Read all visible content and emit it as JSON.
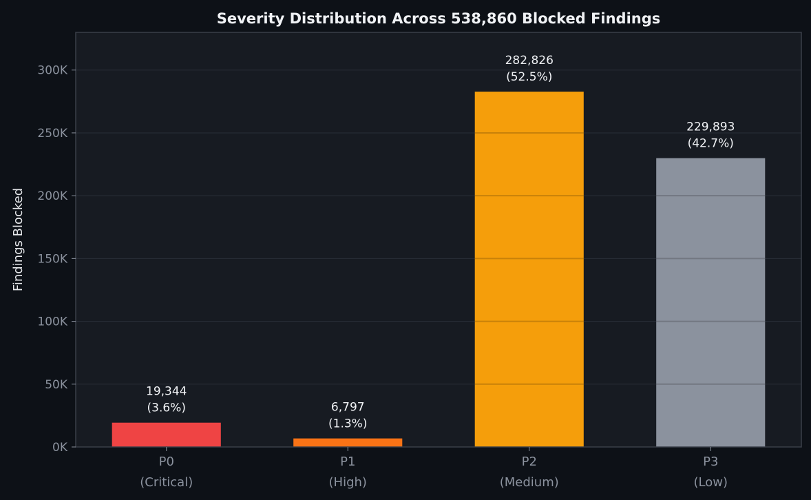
{
  "chart_data": {
    "type": "bar",
    "title": "Severity Distribution Across 538,860 Blocked Findings",
    "xlabel": "",
    "ylabel": "Findings Blocked",
    "categories": [
      {
        "code": "P0",
        "label": "(Critical)"
      },
      {
        "code": "P1",
        "label": "(High)"
      },
      {
        "code": "P2",
        "label": "(Medium)"
      },
      {
        "code": "P3",
        "label": "(Low)"
      }
    ],
    "values": [
      19344,
      6797,
      282826,
      229893
    ],
    "value_labels": [
      "19,344",
      "6,797",
      "282,826",
      "229,893"
    ],
    "percent_labels": [
      "(3.6%)",
      "(1.3%)",
      "(52.5%)",
      "(42.7%)"
    ],
    "bar_colors": [
      "#ef4444",
      "#f97316",
      "#f59e0b",
      "#8b929e"
    ],
    "ylim": [
      0,
      330000
    ],
    "yticks": [
      0,
      50000,
      100000,
      150000,
      200000,
      250000,
      300000
    ],
    "ytick_labels": [
      "0K",
      "50K",
      "100K",
      "150K",
      "200K",
      "250K",
      "300K"
    ],
    "grid": true,
    "legend": "none"
  },
  "colors": {
    "page_bg": "#0d1117",
    "plot_bg": "#171b22",
    "grid": "#2a2f38",
    "grid_over_bar": "#000000",
    "spine": "#3a3f48",
    "title_text": "#f0f2f5",
    "label_text": "#e6e8eb",
    "tick_text": "#8b929e",
    "annotation_text": "#f0f2f5"
  }
}
